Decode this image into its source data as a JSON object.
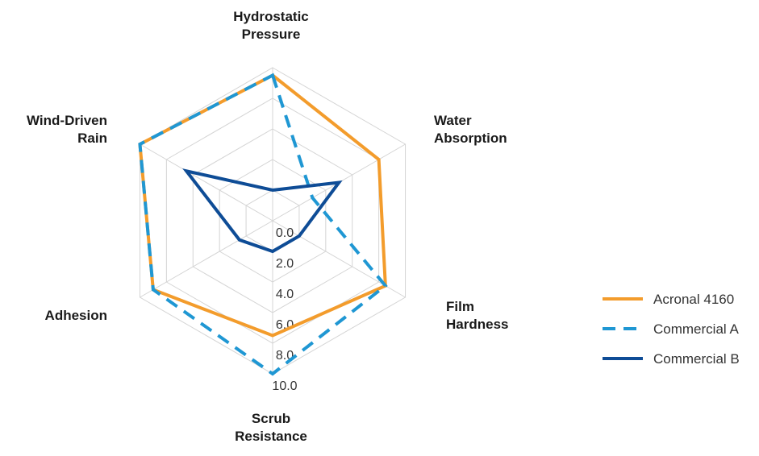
{
  "chart_data": {
    "type": "radar",
    "axes": [
      [
        "Hydrostatic",
        "Pressure"
      ],
      [
        "Water",
        "Absorption"
      ],
      [
        "Film",
        "Hardness"
      ],
      [
        "Scrub",
        "Resistance"
      ],
      [
        "Adhesion"
      ],
      [
        "Wind-Driven",
        "Rain"
      ]
    ],
    "range": [
      0,
      10
    ],
    "ticks": [
      "0.0",
      "2.0",
      "4.0",
      "6.0",
      "8.0",
      "10.0"
    ],
    "tick_values": [
      0,
      2,
      4,
      6,
      8,
      10
    ],
    "grid": true,
    "legend_position": "right",
    "series": [
      {
        "name": "Acronal 4160",
        "values": [
          9.5,
          8.0,
          8.5,
          7.5,
          9.0,
          10.0
        ],
        "color": "#F39C2C",
        "dash": "solid"
      },
      {
        "name": "Commercial A",
        "values": [
          9.5,
          3.0,
          8.5,
          10.0,
          9.0,
          10.0
        ],
        "color": "#1F97D3",
        "dash": "dashed"
      },
      {
        "name": "Commercial B",
        "values": [
          2.0,
          5.0,
          2.0,
          2.0,
          2.5,
          6.5
        ],
        "color": "#0E4C96",
        "dash": "solid"
      }
    ]
  }
}
